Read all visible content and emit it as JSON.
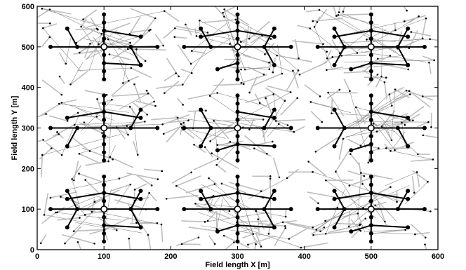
{
  "axes": {
    "xlabel": "Field length X [m]",
    "ylabel": "Field length Y [m]",
    "xlim": [
      0,
      600
    ],
    "ylim": [
      0,
      600
    ],
    "xticks": [
      "0",
      "100",
      "200",
      "300",
      "400",
      "500",
      "600"
    ],
    "yticks": [
      "0",
      "100",
      "200",
      "300",
      "400",
      "500",
      "600"
    ]
  },
  "colors": {
    "trunk": "#000000",
    "link": "#bdbdbd",
    "node": "#000000"
  },
  "clusters": [
    {
      "cx": 100,
      "cy": 100,
      "seed": 11
    },
    {
      "cx": 300,
      "cy": 100,
      "seed": 23
    },
    {
      "cx": 500,
      "cy": 100,
      "seed": 37
    },
    {
      "cx": 100,
      "cy": 300,
      "seed": 41
    },
    {
      "cx": 300,
      "cy": 300,
      "seed": 53
    },
    {
      "cx": 500,
      "cy": 300,
      "seed": 67
    },
    {
      "cx": 100,
      "cy": 500,
      "seed": 71
    },
    {
      "cx": 300,
      "cy": 500,
      "seed": 83
    },
    {
      "cx": 500,
      "cy": 500,
      "seed": 97
    }
  ]
}
